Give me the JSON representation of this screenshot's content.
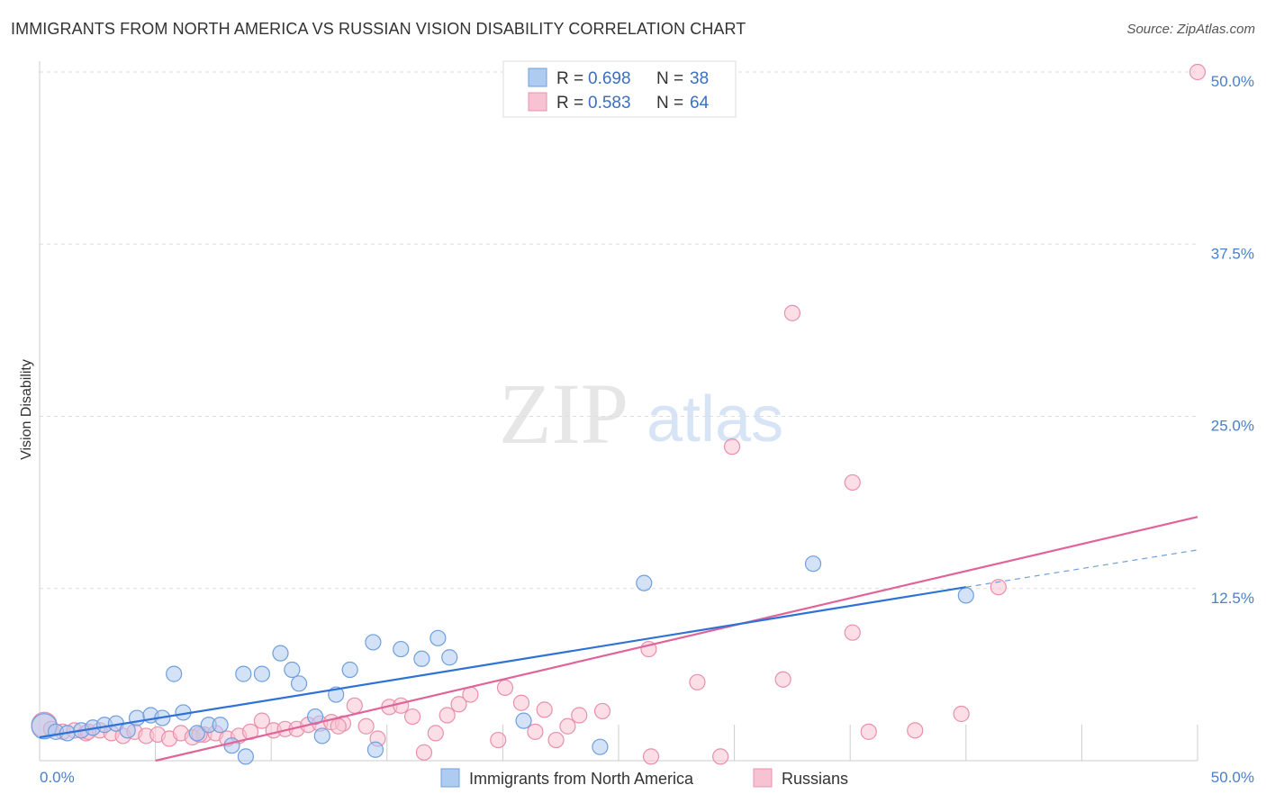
{
  "title": "IMMIGRANTS FROM NORTH AMERICA VS RUSSIAN VISION DISABILITY CORRELATION CHART",
  "source": "Source: ZipAtlas.com",
  "watermark": {
    "zip": "ZIP",
    "atlas": "atlas"
  },
  "colors": {
    "blue_fill": "#aecbf0",
    "blue_stroke": "#6f9fdc",
    "blue_line": "#2f72d6",
    "pink_fill": "#f7c2d2",
    "pink_stroke": "#e890ad",
    "pink_line": "#e0649a",
    "grid": "#dddddd",
    "tick": "#4a7fcb"
  },
  "legend": {
    "rows": [
      {
        "r_label": "R = ",
        "r_value": "0.698",
        "n_label": "N = ",
        "n_value": "38"
      },
      {
        "r_label": "R = ",
        "r_value": "0.583",
        "n_label": "N = ",
        "n_value": "64"
      }
    ]
  },
  "chart_data": {
    "type": "scatter",
    "title": "IMMIGRANTS FROM NORTH AMERICA VS RUSSIAN VISION DISABILITY CORRELATION CHART",
    "xlabel": "",
    "ylabel": "Vision Disability",
    "xlim": [
      0,
      50
    ],
    "ylim": [
      0,
      50
    ],
    "x_tick_labels": [
      "0.0%",
      "50.0%"
    ],
    "y_ticks": [
      12.5,
      25.0,
      37.5,
      50.0
    ],
    "y_tick_labels": [
      "12.5%",
      "25.0%",
      "37.5%",
      "50.0%"
    ],
    "grid": true,
    "legend_position": "top-center",
    "series": [
      {
        "name": "Immigrants from North America",
        "r": 0.698,
        "n": 38,
        "trend": {
          "x0": 0.0,
          "y0": 1.7,
          "x1": 40.0,
          "y1": 12.6,
          "dashed_to_x": 50.0,
          "dashed_to_y": 15.3
        },
        "points": [
          [
            0.2,
            2.5
          ],
          [
            0.7,
            2.1
          ],
          [
            1.2,
            2.0
          ],
          [
            1.8,
            2.2
          ],
          [
            2.3,
            2.4
          ],
          [
            2.8,
            2.6
          ],
          [
            3.3,
            2.7
          ],
          [
            3.8,
            2.2
          ],
          [
            4.2,
            3.1
          ],
          [
            4.8,
            3.3
          ],
          [
            5.3,
            3.1
          ],
          [
            5.8,
            6.3
          ],
          [
            6.2,
            3.5
          ],
          [
            6.8,
            2.0
          ],
          [
            7.3,
            2.6
          ],
          [
            7.8,
            2.6
          ],
          [
            8.3,
            1.1
          ],
          [
            8.8,
            6.3
          ],
          [
            9.6,
            6.3
          ],
          [
            10.4,
            7.8
          ],
          [
            10.9,
            6.6
          ],
          [
            11.2,
            5.6
          ],
          [
            11.9,
            3.2
          ],
          [
            12.2,
            1.8
          ],
          [
            12.8,
            4.8
          ],
          [
            13.4,
            6.6
          ],
          [
            14.4,
            8.6
          ],
          [
            14.5,
            0.8
          ],
          [
            15.6,
            8.1
          ],
          [
            16.5,
            7.4
          ],
          [
            17.2,
            8.9
          ],
          [
            17.7,
            7.5
          ],
          [
            20.9,
            2.9
          ],
          [
            24.2,
            1.0
          ],
          [
            26.1,
            12.9
          ],
          [
            33.4,
            14.3
          ],
          [
            40.0,
            12.0
          ],
          [
            8.9,
            0.3
          ]
        ]
      },
      {
        "name": "Russians",
        "r": 0.583,
        "n": 64,
        "trend": {
          "x0": 5.0,
          "y0": 0.0,
          "x1": 50.0,
          "y1": 17.7
        },
        "points": [
          [
            0.2,
            2.6
          ],
          [
            0.5,
            2.3
          ],
          [
            1.0,
            2.1
          ],
          [
            1.5,
            2.2
          ],
          [
            2.0,
            2.0
          ],
          [
            2.6,
            2.2
          ],
          [
            3.1,
            2.0
          ],
          [
            3.6,
            1.8
          ],
          [
            4.1,
            2.1
          ],
          [
            4.6,
            1.8
          ],
          [
            5.1,
            1.9
          ],
          [
            5.6,
            1.6
          ],
          [
            6.1,
            2.0
          ],
          [
            6.6,
            1.7
          ],
          [
            7.1,
            1.9
          ],
          [
            7.6,
            2.0
          ],
          [
            8.1,
            1.6
          ],
          [
            8.6,
            1.8
          ],
          [
            9.1,
            2.1
          ],
          [
            9.6,
            2.9
          ],
          [
            10.1,
            2.2
          ],
          [
            10.6,
            2.3
          ],
          [
            11.1,
            2.3
          ],
          [
            11.6,
            2.6
          ],
          [
            12.1,
            2.7
          ],
          [
            12.6,
            2.8
          ],
          [
            13.1,
            2.7
          ],
          [
            13.6,
            4.0
          ],
          [
            14.1,
            2.5
          ],
          [
            14.6,
            1.6
          ],
          [
            15.1,
            3.9
          ],
          [
            15.6,
            4.0
          ],
          [
            16.1,
            3.2
          ],
          [
            16.6,
            0.6
          ],
          [
            17.1,
            2.0
          ],
          [
            17.6,
            3.3
          ],
          [
            18.1,
            4.1
          ],
          [
            18.6,
            4.8
          ],
          [
            19.8,
            1.5
          ],
          [
            20.1,
            5.3
          ],
          [
            20.8,
            4.2
          ],
          [
            21.4,
            2.1
          ],
          [
            21.8,
            3.7
          ],
          [
            22.3,
            1.5
          ],
          [
            22.8,
            2.5
          ],
          [
            23.3,
            3.3
          ],
          [
            24.3,
            3.6
          ],
          [
            26.3,
            8.1
          ],
          [
            26.4,
            0.3
          ],
          [
            28.4,
            5.7
          ],
          [
            29.4,
            0.3
          ],
          [
            29.9,
            22.8
          ],
          [
            32.1,
            5.9
          ],
          [
            32.5,
            32.5
          ],
          [
            35.1,
            20.2
          ],
          [
            35.1,
            9.3
          ],
          [
            35.8,
            2.1
          ],
          [
            37.8,
            2.2
          ],
          [
            39.8,
            3.4
          ],
          [
            41.4,
            12.6
          ],
          [
            50.0,
            50.0
          ],
          [
            2.1,
            2.1
          ],
          [
            6.9,
            1.9
          ],
          [
            12.9,
            2.5
          ]
        ]
      }
    ]
  }
}
